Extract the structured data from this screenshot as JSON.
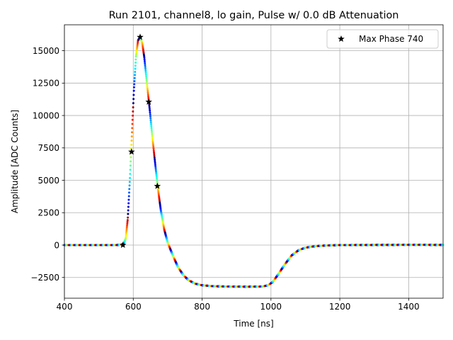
{
  "chart_data": {
    "type": "scatter",
    "title": "Run 2101, channel8, lo gain, Pulse w/ 0.0 dB Attenuation",
    "xlabel": "Time [ns]",
    "ylabel": "Amplitude [ADC Counts]",
    "xlim": [
      400,
      1500
    ],
    "ylim": [
      -4100,
      17000
    ],
    "xticks": [
      400,
      600,
      800,
      1000,
      1200,
      1400
    ],
    "yticks": [
      -2500,
      0,
      2500,
      5000,
      7500,
      10000,
      12500,
      15000
    ],
    "xtick_labels": [
      "400",
      "600",
      "800",
      "1000",
      "1200",
      "1400"
    ],
    "ytick_labels": [
      "−2500",
      "0",
      "2500",
      "5000",
      "7500",
      "10000",
      "12500",
      "15000"
    ],
    "grid": true,
    "legend_position": "top-right",
    "colormap": "jet",
    "series": [
      {
        "name": "",
        "marker": "dot",
        "curve": [
          [
            400,
            0
          ],
          [
            550,
            0
          ],
          [
            565,
            30
          ],
          [
            572,
            100
          ],
          [
            578,
            500
          ],
          [
            584,
            2000
          ],
          [
            590,
            5000
          ],
          [
            596,
            8500
          ],
          [
            602,
            12000
          ],
          [
            608,
            14600
          ],
          [
            614,
            15800
          ],
          [
            620,
            16050
          ],
          [
            626,
            15600
          ],
          [
            632,
            14500
          ],
          [
            640,
            12400
          ],
          [
            648,
            10400
          ],
          [
            656,
            8200
          ],
          [
            664,
            6200
          ],
          [
            672,
            4300
          ],
          [
            680,
            2700
          ],
          [
            690,
            1200
          ],
          [
            700,
            200
          ],
          [
            715,
            -800
          ],
          [
            730,
            -1700
          ],
          [
            745,
            -2300
          ],
          [
            760,
            -2700
          ],
          [
            780,
            -2980
          ],
          [
            800,
            -3100
          ],
          [
            830,
            -3170
          ],
          [
            870,
            -3200
          ],
          [
            930,
            -3210
          ],
          [
            975,
            -3200
          ],
          [
            992,
            -3100
          ],
          [
            1005,
            -2850
          ],
          [
            1020,
            -2300
          ],
          [
            1040,
            -1500
          ],
          [
            1060,
            -800
          ],
          [
            1080,
            -400
          ],
          [
            1100,
            -200
          ],
          [
            1130,
            -80
          ],
          [
            1160,
            -30
          ],
          [
            1200,
            0
          ],
          [
            1300,
            10
          ],
          [
            1400,
            20
          ],
          [
            1500,
            15
          ]
        ]
      },
      {
        "name": "Max Phase 740",
        "marker": "star",
        "color": "#000000",
        "points": [
          [
            570,
            0
          ],
          [
            595,
            7200
          ],
          [
            620,
            16050
          ],
          [
            645,
            11050
          ],
          [
            670,
            4550
          ]
        ]
      }
    ]
  }
}
